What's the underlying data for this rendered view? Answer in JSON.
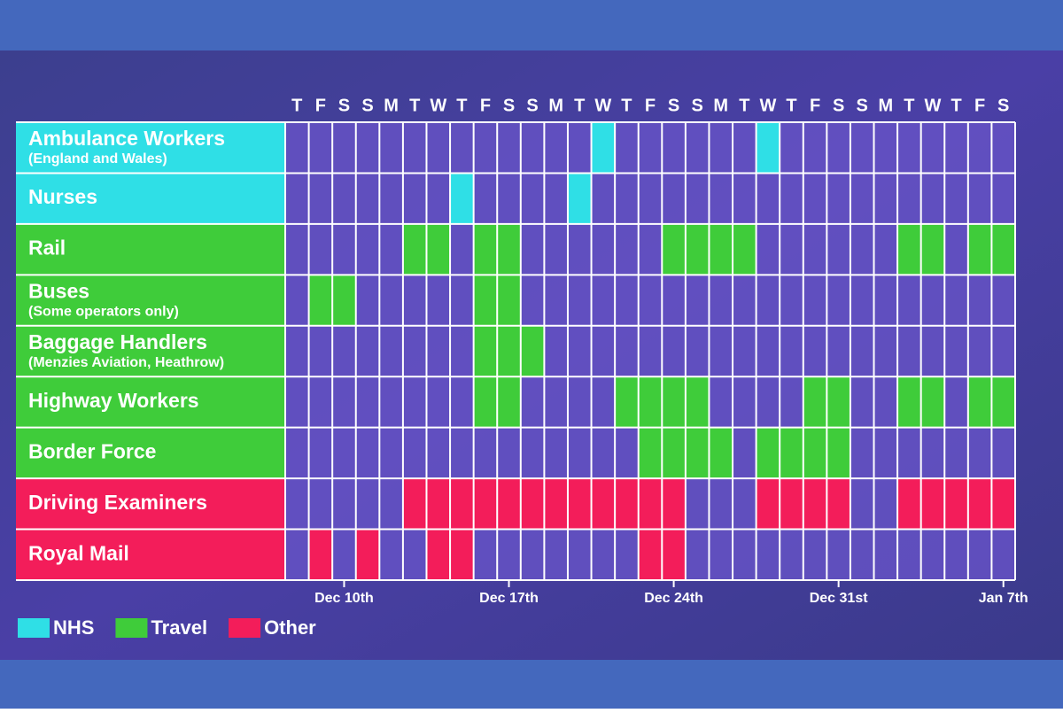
{
  "header_days": [
    "T",
    "F",
    "S",
    "S",
    "M",
    "T",
    "W",
    "T",
    "F",
    "S",
    "S",
    "M",
    "T",
    "W",
    "T",
    "F",
    "S",
    "S",
    "M",
    "T",
    "W",
    "T",
    "F",
    "S",
    "S",
    "M",
    "T",
    "W",
    "T",
    "F",
    "S"
  ],
  "legend": [
    {
      "name": "NHS",
      "color": "#2fdfe6"
    },
    {
      "name": "Travel",
      "color": "#3fcc3a"
    },
    {
      "name": "Other",
      "color": "#f31d5a"
    }
  ],
  "rows": [
    {
      "label": "Ambulance Workers",
      "sublabel": "(England and Wales)",
      "category": "NHS",
      "strike_days": [
        13,
        20
      ]
    },
    {
      "label": "Nurses",
      "category": "NHS",
      "strike_days": [
        7,
        12
      ]
    },
    {
      "label": "Rail",
      "category": "Travel",
      "strike_days": [
        5,
        6,
        8,
        9,
        16,
        17,
        18,
        19,
        26,
        27,
        29,
        30
      ]
    },
    {
      "label": "Buses",
      "sublabel": "(Some operators only)",
      "category": "Travel",
      "strike_days": [
        1,
        2,
        8,
        9
      ]
    },
    {
      "label": "Baggage Handlers",
      "sublabel": "(Menzies Aviation, Heathrow)",
      "category": "Travel",
      "strike_days": [
        8,
        9,
        10
      ]
    },
    {
      "label": "Highway Workers",
      "category": "Travel",
      "strike_days": [
        8,
        9,
        14,
        15,
        16,
        17,
        22,
        23,
        26,
        27,
        29,
        30
      ]
    },
    {
      "label": "Border Force",
      "category": "Travel",
      "strike_days": [
        15,
        16,
        17,
        18,
        20,
        21,
        22,
        23
      ]
    },
    {
      "label": "Driving Examiners",
      "category": "Other",
      "strike_days": [
        5,
        6,
        7,
        8,
        9,
        10,
        11,
        12,
        13,
        14,
        15,
        16,
        20,
        21,
        22,
        23,
        26,
        27,
        28,
        29,
        30
      ]
    },
    {
      "label": "Royal Mail",
      "category": "Other",
      "strike_days": [
        1,
        3,
        6,
        7,
        15,
        16
      ]
    }
  ],
  "date_labels": [
    {
      "day_index": 2,
      "text": "Dec 10th"
    },
    {
      "day_index": 9,
      "text": "Dec 17th"
    },
    {
      "day_index": 16,
      "text": "Dec 24th"
    },
    {
      "day_index": 23,
      "text": "Dec 31st"
    },
    {
      "day_index": 30,
      "text": "Jan 7th"
    }
  ]
}
